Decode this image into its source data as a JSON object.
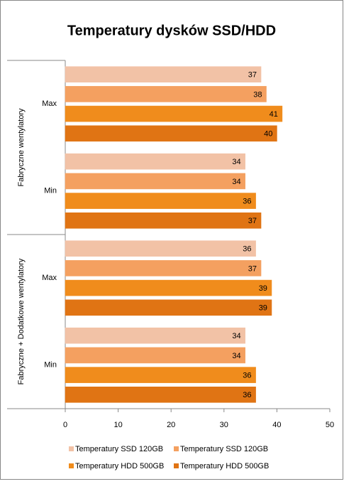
{
  "chart_data": {
    "type": "hbar",
    "title": "Temperatury dysków SSD/HDD",
    "groups": [
      "Fabryczne wentylatory",
      "Fabryczne + Dodatkowe  wentylatory"
    ],
    "categories": [
      "Max",
      "Min",
      "Max",
      "Min"
    ],
    "series": [
      {
        "name": "Temperatury SSD 120GB",
        "color": "#f2c2a6",
        "values": [
          37,
          34,
          36,
          34
        ]
      },
      {
        "name": "Temperatury SSD 120GB",
        "color": "#f4a060",
        "values": [
          38,
          34,
          37,
          34
        ]
      },
      {
        "name": "Temperatury HDD 500GB",
        "color": "#f08c1c",
        "values": [
          41,
          36,
          39,
          36
        ]
      },
      {
        "name": "Temperatury HDD 500GB",
        "color": "#e07414",
        "values": [
          40,
          37,
          39,
          36
        ]
      }
    ],
    "xlim": [
      0,
      50
    ],
    "xticks": [
      0,
      10,
      20,
      30,
      40,
      50
    ],
    "grid": false
  }
}
